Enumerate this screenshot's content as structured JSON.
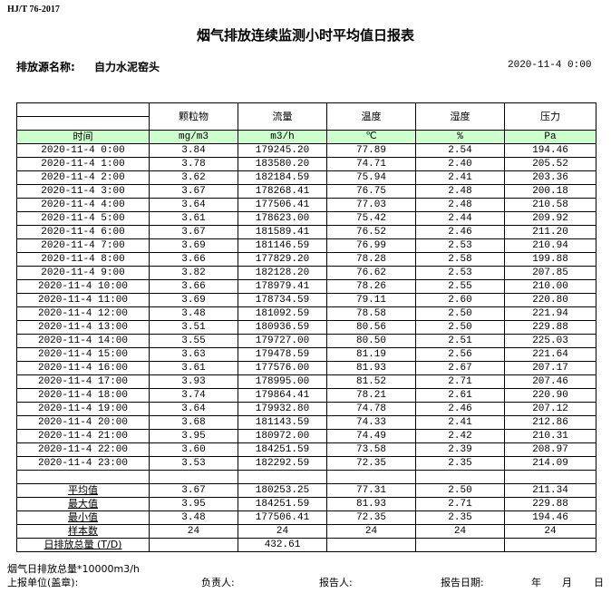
{
  "standard": "HJ/T  76-2017",
  "title": "烟气排放连续监测小时平均值日报表",
  "source_label": "排放源名称:",
  "source_name": "自力水泥窑头",
  "report_datetime": "2020-11-4 0:00",
  "columns": [
    "颗粒物",
    "流量",
    "温度",
    "湿度",
    "压力"
  ],
  "time_label": "时间",
  "units": [
    "mg/m3",
    "m3/h",
    "℃",
    "%",
    "Pa"
  ],
  "unit_row_color": "#ccffcc",
  "rows": [
    [
      "2020-11-4 0:00",
      "3.84",
      "179245.20",
      "77.89",
      "2.54",
      "194.46"
    ],
    [
      "2020-11-4 1:00",
      "3.78",
      "183580.20",
      "74.71",
      "2.40",
      "205.52"
    ],
    [
      "2020-11-4 2:00",
      "3.62",
      "182184.59",
      "75.94",
      "2.41",
      "203.36"
    ],
    [
      "2020-11-4 3:00",
      "3.67",
      "178268.41",
      "76.75",
      "2.48",
      "200.18"
    ],
    [
      "2020-11-4 4:00",
      "3.64",
      "177506.41",
      "77.03",
      "2.48",
      "210.58"
    ],
    [
      "2020-11-4 5:00",
      "3.61",
      "178623.00",
      "75.42",
      "2.44",
      "209.92"
    ],
    [
      "2020-11-4 6:00",
      "3.67",
      "181589.41",
      "76.52",
      "2.46",
      "211.20"
    ],
    [
      "2020-11-4 7:00",
      "3.69",
      "181146.59",
      "76.99",
      "2.53",
      "210.94"
    ],
    [
      "2020-11-4 8:00",
      "3.66",
      "177829.20",
      "78.28",
      "2.58",
      "199.88"
    ],
    [
      "2020-11-4 9:00",
      "3.82",
      "182128.20",
      "76.62",
      "2.53",
      "207.85"
    ],
    [
      "2020-11-4 10:00",
      "3.66",
      "178979.41",
      "78.26",
      "2.55",
      "210.00"
    ],
    [
      "2020-11-4 11:00",
      "3.69",
      "178734.59",
      "79.11",
      "2.60",
      "220.80"
    ],
    [
      "2020-11-4 12:00",
      "3.48",
      "181092.59",
      "78.58",
      "2.50",
      "221.94"
    ],
    [
      "2020-11-4 13:00",
      "3.51",
      "180936.59",
      "80.56",
      "2.50",
      "229.88"
    ],
    [
      "2020-11-4 14:00",
      "3.55",
      "179727.00",
      "80.50",
      "2.51",
      "225.03"
    ],
    [
      "2020-11-4 15:00",
      "3.63",
      "179478.59",
      "81.19",
      "2.56",
      "221.64"
    ],
    [
      "2020-11-4 16:00",
      "3.61",
      "177576.00",
      "81.93",
      "2.67",
      "207.17"
    ],
    [
      "2020-11-4 17:00",
      "3.93",
      "178995.00",
      "81.52",
      "2.71",
      "207.46"
    ],
    [
      "2020-11-4 18:00",
      "3.74",
      "179864.41",
      "78.21",
      "2.61",
      "220.90"
    ],
    [
      "2020-11-4 19:00",
      "3.64",
      "179932.80",
      "74.78",
      "2.46",
      "207.12"
    ],
    [
      "2020-11-4 20:00",
      "3.68",
      "181143.59",
      "74.33",
      "2.41",
      "212.86"
    ],
    [
      "2020-11-4 21:00",
      "3.95",
      "180972.00",
      "74.49",
      "2.42",
      "210.31"
    ],
    [
      "2020-11-4 22:00",
      "3.60",
      "184251.59",
      "73.58",
      "2.39",
      "208.97"
    ],
    [
      "2020-11-4 23:00",
      "3.53",
      "182292.59",
      "72.35",
      "2.35",
      "214.09"
    ]
  ],
  "stats": [
    [
      "平均值",
      "3.67",
      "180253.25",
      "77.31",
      "2.50",
      "211.34"
    ],
    [
      "最大值",
      "3.95",
      "184251.59",
      "81.93",
      "2.71",
      "229.88"
    ],
    [
      "最小值",
      "3.48",
      "177506.41",
      "72.35",
      "2.35",
      "194.46"
    ],
    [
      "样本数",
      "24",
      "24",
      "24",
      "24",
      "24"
    ],
    [
      "日排放总量 (T/D)",
      "",
      "432.61",
      "",
      "",
      ""
    ]
  ],
  "footer": {
    "note": "烟气日排放总量*10000m3/h",
    "unit_label": "上报单位(盖章):",
    "person_label": "负责人:",
    "reporter_label": "报告人:",
    "date_label": "报告日期:",
    "year": "年",
    "month": "月",
    "day": "日"
  }
}
